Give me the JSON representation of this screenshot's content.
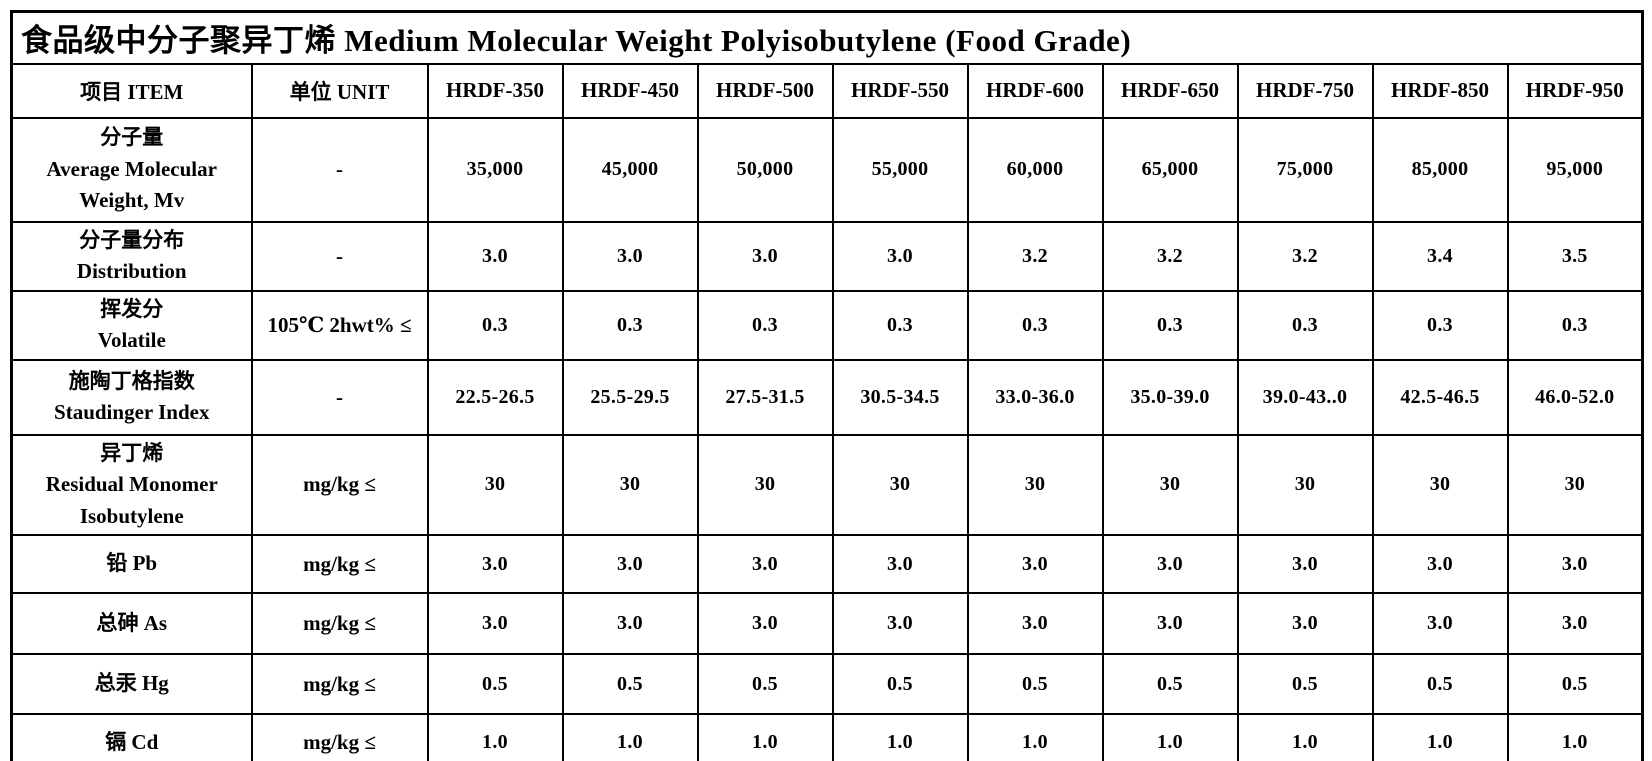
{
  "title": "食品级中分子聚异丁烯 Medium Molecular Weight Polyisobutylene (Food Grade)",
  "colors": {
    "text": "#000000",
    "border": "#000000",
    "background": "#ffffff"
  },
  "table": {
    "headers": {
      "item": "项目 ITEM",
      "unit": "单位 UNIT",
      "grades": [
        "HRDF-350",
        "HRDF-450",
        "HRDF-500",
        "HRDF-550",
        "HRDF-600",
        "HRDF-650",
        "HRDF-750",
        "HRDF-850",
        "HRDF-950"
      ]
    },
    "rows": [
      {
        "item_lines": [
          "分子量",
          "Average Molecular",
          "Weight, Mv"
        ],
        "unit": "-",
        "values": [
          "35,000",
          "45,000",
          "50,000",
          "55,000",
          "60,000",
          "65,000",
          "75,000",
          "85,000",
          "95,000"
        ]
      },
      {
        "item_lines": [
          "分子量分布",
          "Distribution"
        ],
        "unit": "-",
        "values": [
          "3.0",
          "3.0",
          "3.0",
          "3.0",
          "3.2",
          "3.2",
          "3.2",
          "3.4",
          "3.5"
        ]
      },
      {
        "item_lines": [
          "挥发分",
          "Volatile"
        ],
        "unit": "105℃ 2hwt% ≤",
        "values": [
          "0.3",
          "0.3",
          "0.3",
          "0.3",
          "0.3",
          "0.3",
          "0.3",
          "0.3",
          "0.3"
        ]
      },
      {
        "item_lines": [
          "施陶丁格指数",
          "Staudinger Index"
        ],
        "unit": "-",
        "values": [
          "22.5-26.5",
          "25.5-29.5",
          "27.5-31.5",
          "30.5-34.5",
          "33.0-36.0",
          "35.0-39.0",
          "39.0-43..0",
          "42.5-46.5",
          "46.0-52.0"
        ]
      },
      {
        "item_lines": [
          "异丁烯",
          "Residual Monomer",
          "Isobutylene"
        ],
        "unit": "mg/kg ≤",
        "values": [
          "30",
          "30",
          "30",
          "30",
          "30",
          "30",
          "30",
          "30",
          "30"
        ]
      },
      {
        "item_lines": [
          "铅 Pb"
        ],
        "unit": "mg/kg ≤",
        "values": [
          "3.0",
          "3.0",
          "3.0",
          "3.0",
          "3.0",
          "3.0",
          "3.0",
          "3.0",
          "3.0"
        ]
      },
      {
        "item_lines": [
          "总砷 As"
        ],
        "unit": "mg/kg ≤",
        "values": [
          "3.0",
          "3.0",
          "3.0",
          "3.0",
          "3.0",
          "3.0",
          "3.0",
          "3.0",
          "3.0"
        ]
      },
      {
        "item_lines": [
          "总汞 Hg"
        ],
        "unit": "mg/kg ≤",
        "values": [
          "0.5",
          "0.5",
          "0.5",
          "0.5",
          "0.5",
          "0.5",
          "0.5",
          "0.5",
          "0.5"
        ]
      },
      {
        "item_lines": [
          "镉 Cd"
        ],
        "unit": "mg/kg ≤",
        "values": [
          "1.0",
          "1.0",
          "1.0",
          "1.0",
          "1.0",
          "1.0",
          "1.0",
          "1.0",
          "1.0"
        ]
      }
    ]
  }
}
